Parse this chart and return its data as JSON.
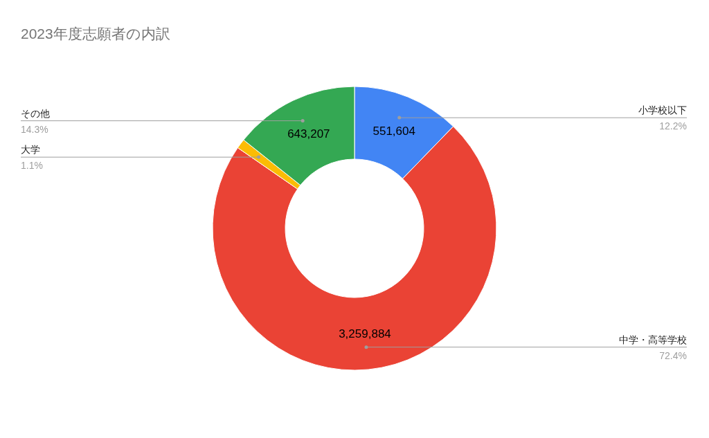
{
  "chart_data": {
    "type": "donut",
    "title": "2023年度志願者の内訳",
    "categories": [
      "小学校以下",
      "中学・高等学校",
      "大学",
      "その他"
    ],
    "values": [
      551604,
      3259884,
      49500,
      643207
    ],
    "value_labels": [
      "551,604",
      "3,259,884",
      null,
      "643,207"
    ],
    "colors": [
      "#4285f4",
      "#ea4335",
      "#fbbc04",
      "#34a853"
    ],
    "annotations": [
      "12.2%",
      "72.4%",
      "1.1%",
      "14.3%"
    ]
  }
}
